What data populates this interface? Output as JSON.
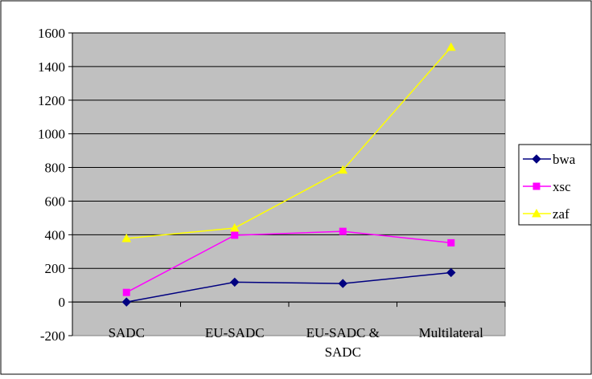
{
  "chart_data": {
    "type": "line",
    "categories": [
      "SADC",
      "EU-SADC",
      "EU-SADC & SADC",
      "Multilateral"
    ],
    "category_lines": [
      [
        "SADC"
      ],
      [
        "EU-SADC"
      ],
      [
        "EU-SADC &",
        "SADC"
      ],
      [
        "Multilateral"
      ]
    ],
    "yticks": [
      -200,
      0,
      200,
      400,
      600,
      800,
      1000,
      1200,
      1400,
      1600
    ],
    "ylim": [
      -200,
      1600
    ],
    "grid": true,
    "legend_position": "right",
    "plot_background": "#c0c0c0",
    "series": [
      {
        "name": "bwa",
        "color": "#000080",
        "marker": "diamond",
        "values": [
          0,
          118,
          110,
          175
        ]
      },
      {
        "name": "xsc",
        "color": "#ff00ff",
        "marker": "square",
        "values": [
          57,
          397,
          420,
          352
        ]
      },
      {
        "name": "zaf",
        "color": "#ffff00",
        "marker": "triangle",
        "values": [
          378,
          440,
          785,
          1515
        ]
      }
    ]
  }
}
